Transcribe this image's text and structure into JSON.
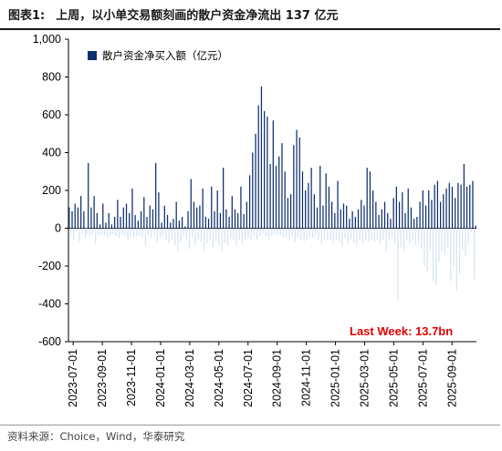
{
  "header": {
    "prefix": "图表1:",
    "text": "上周，以小单交易额刻画的散户资金净流出 137 亿元"
  },
  "footer": {
    "source": "资料来源：Choice，Wind，华泰研究"
  },
  "chart_data": {
    "type": "bar",
    "title": "",
    "xlabel": "",
    "ylabel": "",
    "ylim": [
      -600,
      1000
    ],
    "yticks": [
      -600,
      -400,
      -200,
      0,
      200,
      400,
      600,
      800,
      "1,000"
    ],
    "xticks": [
      "2023-07-01",
      "2023-09-01",
      "2023-11-01",
      "2024-01-01",
      "2024-03-01",
      "2024-05-01",
      "2024-07-01",
      "2024-09-01",
      "2024-11-01",
      "2025-01-01",
      "2025-03-01",
      "2025-05-01",
      "2025-07-01",
      "2025-09-01"
    ],
    "legend": {
      "position": "top-left",
      "label": "散户资金净买入额（亿元）"
    },
    "annotation": "Last Week: 13.7bn",
    "colors": {
      "positive": "#0d2f6e",
      "negative": "#d6e3f3"
    },
    "series": [
      {
        "values": [
          110,
          -40,
          90,
          -60,
          130,
          -20,
          110,
          -70,
          170,
          -30,
          90,
          -50,
          -30,
          345,
          -40,
          110,
          -30,
          170,
          -80,
          80,
          -40,
          20,
          -30,
          130,
          -40,
          30,
          -50,
          80,
          -40,
          20,
          -30,
          60,
          -40,
          150,
          -50,
          60,
          -30,
          110,
          -40,
          130,
          -60,
          80,
          -40,
          210,
          -50,
          70,
          -40,
          40,
          -40,
          90,
          -50,
          165,
          -90,
          60,
          -40,
          120,
          -50,
          100,
          -40,
          345,
          -70,
          190,
          -50,
          30,
          -40,
          120,
          -60,
          70,
          -80,
          30,
          -60,
          50,
          -90,
          140,
          -120,
          40,
          -70,
          60,
          -40,
          10,
          -60,
          90,
          -110,
          260,
          -50,
          140,
          -90,
          110,
          -60,
          120,
          -70,
          210,
          -120,
          60,
          -80,
          50,
          -60,
          220,
          -100,
          90,
          -70,
          200,
          -90,
          80,
          -120,
          320,
          -80,
          100,
          -90,
          60,
          -50,
          170,
          -60,
          100,
          -90,
          80,
          -60,
          220,
          -80,
          75,
          -60,
          140,
          -50,
          280,
          -60,
          400,
          -40,
          500,
          -60,
          650,
          -40,
          750,
          -30,
          620,
          -40,
          590,
          -60,
          340,
          -40,
          570,
          -30,
          330,
          -40,
          380,
          -40,
          450,
          -50,
          300,
          -50,
          160,
          -60,
          180,
          -40,
          440,
          -70,
          520,
          -50,
          480,
          -60,
          300,
          -70,
          200,
          -60,
          240,
          -50,
          320,
          -50,
          180,
          -40,
          110,
          -60,
          330,
          -80,
          120,
          -60,
          290,
          -60,
          220,
          -60,
          140,
          -80,
          80,
          -60,
          250,
          -70,
          100,
          -90,
          130,
          -50,
          120,
          -80,
          50,
          -60,
          90,
          -80,
          60,
          -90,
          100,
          -60,
          150,
          -80,
          120,
          -60,
          320,
          -70,
          300,
          -60,
          200,
          -70,
          140,
          -60,
          70,
          -80,
          100,
          -60,
          140,
          -120,
          80,
          -60,
          50,
          -50,
          160,
          -80,
          220,
          -380,
          140,
          -100,
          190,
          -120,
          80,
          -60,
          210,
          -80,
          110,
          -70,
          50,
          -90,
          60,
          -80,
          140,
          -110,
          200,
          -200,
          120,
          -230,
          200,
          -120,
          150,
          -280,
          230,
          -300,
          250,
          -180,
          140,
          -120,
          180,
          -140,
          210,
          -100,
          240,
          -280,
          220,
          -200,
          160,
          -330,
          240,
          -240,
          230,
          -120,
          340,
          -150,
          220,
          -80,
          230,
          -20,
          250,
          -270,
          14
        ]
      }
    ]
  }
}
